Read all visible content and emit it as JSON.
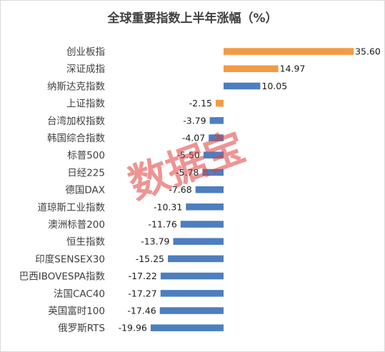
{
  "chart_data": {
    "type": "bar",
    "orientation": "horizontal",
    "title": "全球重要指数上半年涨幅（%）",
    "categories": [
      "创业板指",
      "深证成指",
      "纳斯达克指数",
      "上证指数",
      "台湾加权指数",
      "韩国综合指数",
      "标普500",
      "日经225",
      "德国DAX",
      "道琼斯工业指数",
      "澳洲标普200",
      "恒生指数",
      "印度SENSEX30",
      "巴西IBOVESPA指数",
      "法国CAC40",
      "英国富时100",
      "俄罗斯RTS"
    ],
    "values": [
      35.6,
      14.97,
      10.05,
      -2.15,
      -3.79,
      -4.07,
      -5.5,
      -5.78,
      -7.68,
      -10.31,
      -11.76,
      -13.79,
      -15.25,
      -17.22,
      -17.27,
      -17.46,
      -19.96
    ],
    "value_labels": [
      "35.60",
      "14.97",
      "10.05",
      "-2.15",
      "-3.79",
      "-4.07",
      "-5.50",
      "-5.78",
      "-7.68",
      "-10.31",
      "-11.76",
      "-13.79",
      "-15.25",
      "-17.22",
      "-17.27",
      "-17.46",
      "-19.96"
    ],
    "highlighted_categories": [
      "创业板指",
      "深证成指",
      "上证指数"
    ],
    "colors": {
      "highlight": "#f39a44",
      "default": "#4d7ebf"
    },
    "xlim": [
      -20,
      36
    ],
    "grid": false,
    "legend": "none"
  },
  "watermark": "数据宝"
}
